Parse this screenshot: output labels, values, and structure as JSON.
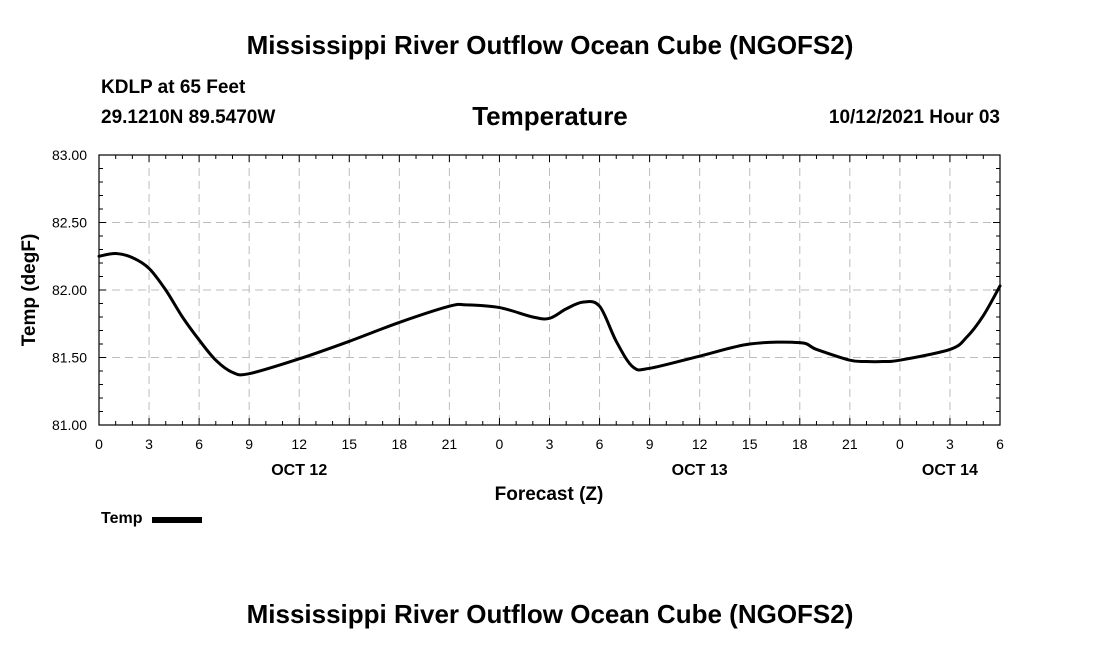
{
  "page": {
    "title_top": "Mississippi River Outflow Ocean Cube (NGOFS2)",
    "title_bottom": "Mississippi River Outflow Ocean Cube (NGOFS2)",
    "station": "KDLP at 65 Feet",
    "coords": "29.1210N  89.5470W",
    "variable_title": "Temperature",
    "date": "10/12/2021 Hour 03"
  },
  "legend": {
    "label": "Temp",
    "color": "#000000"
  },
  "chart_data": {
    "type": "line",
    "title": "Temperature",
    "xlabel": "Forecast (Z)",
    "ylabel": "Temp (degF)",
    "xlim": [
      0,
      54
    ],
    "ylim": [
      81.0,
      83.0
    ],
    "grid": true,
    "y_ticks": [
      81.0,
      81.5,
      82.0,
      82.5,
      83.0
    ],
    "y_tick_labels": [
      "81.00",
      "81.50",
      "82.00",
      "82.50",
      "83.00"
    ],
    "x_ticks": [
      0,
      3,
      6,
      9,
      12,
      15,
      18,
      21,
      24,
      27,
      30,
      33,
      36,
      39,
      42,
      45,
      48,
      51,
      54
    ],
    "x_tick_labels": [
      "0",
      "3",
      "6",
      "9",
      "12",
      "15",
      "18",
      "21",
      "0",
      "3",
      "6",
      "9",
      "12",
      "15",
      "18",
      "21",
      "0",
      "3",
      "6"
    ],
    "day_labels": [
      {
        "x": 12,
        "label": "OCT 12"
      },
      {
        "x": 36,
        "label": "OCT 13"
      },
      {
        "x": 51,
        "label": "OCT 14"
      }
    ],
    "series": [
      {
        "name": "Temp",
        "color": "#000000",
        "x": [
          0,
          1,
          2,
          3,
          4,
          5,
          6,
          7,
          8,
          9,
          12,
          15,
          18,
          21,
          22,
          24,
          26,
          27,
          28,
          29,
          30,
          31,
          32,
          33,
          36,
          39,
          42,
          43,
          45,
          46,
          47,
          48,
          51,
          52,
          53,
          54
        ],
        "values": [
          82.25,
          82.27,
          82.24,
          82.16,
          82.0,
          81.8,
          81.63,
          81.48,
          81.39,
          81.38,
          81.49,
          81.62,
          81.76,
          81.88,
          81.89,
          81.87,
          81.8,
          81.79,
          81.86,
          81.91,
          81.88,
          81.62,
          81.43,
          81.42,
          81.51,
          81.6,
          81.61,
          81.56,
          81.48,
          81.47,
          81.47,
          81.48,
          81.56,
          81.65,
          81.81,
          82.03
        ]
      }
    ]
  }
}
